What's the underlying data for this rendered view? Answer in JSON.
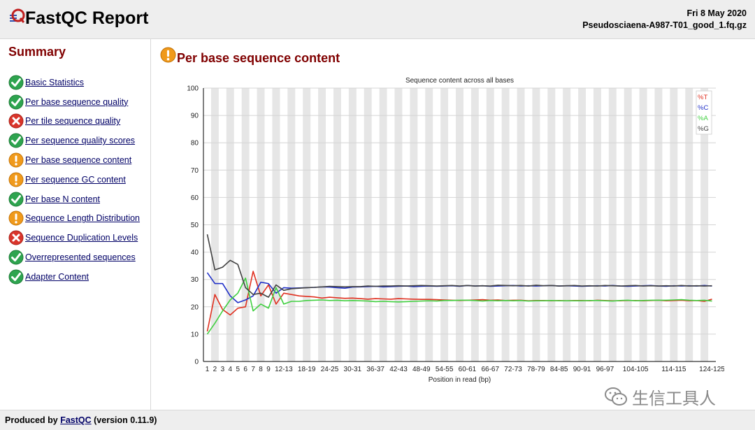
{
  "header": {
    "app_title": "FastQC Report",
    "date": "Fri 8 May 2020",
    "filename": "Pseudosciaena-A987-T01_good_1.fq.gz"
  },
  "sidebar": {
    "title": "Summary",
    "items": [
      {
        "label": "Basic Statistics",
        "status": "pass",
        "icon": "pass-icon"
      },
      {
        "label": "Per base sequence quality",
        "status": "pass",
        "icon": "pass-icon"
      },
      {
        "label": "Per tile sequence quality",
        "status": "fail",
        "icon": "fail-icon"
      },
      {
        "label": "Per sequence quality scores",
        "status": "pass",
        "icon": "pass-icon"
      },
      {
        "label": "Per base sequence content",
        "status": "warn",
        "icon": "warn-icon"
      },
      {
        "label": "Per sequence GC content",
        "status": "warn",
        "icon": "warn-icon"
      },
      {
        "label": "Per base N content",
        "status": "pass",
        "icon": "pass-icon"
      },
      {
        "label": "Sequence Length Distribution",
        "status": "warn",
        "icon": "warn-icon"
      },
      {
        "label": "Sequence Duplication Levels",
        "status": "fail",
        "icon": "fail-icon"
      },
      {
        "label": "Overrepresented sequences",
        "status": "pass",
        "icon": "pass-icon"
      },
      {
        "label": "Adapter Content",
        "status": "pass",
        "icon": "pass-icon"
      }
    ]
  },
  "section": {
    "title": "Per base sequence content",
    "status": "warn",
    "icon": "warn-icon"
  },
  "colors": {
    "pass": "#2ea44f",
    "fail": "#d9352b",
    "warn": "#f09a1c",
    "title": "#800000",
    "link": "#000066"
  },
  "chart_data": {
    "type": "line",
    "title": "Sequence content across all bases",
    "xlabel": "Position in read (bp)",
    "ylabel": "",
    "ylim": [
      0,
      100
    ],
    "yticks": [
      0,
      10,
      20,
      30,
      40,
      50,
      60,
      70,
      80,
      90,
      100
    ],
    "grid": true,
    "legend_position": "top-right",
    "categories": [
      "1",
      "2",
      "3",
      "4",
      "5",
      "6",
      "7",
      "8",
      "9",
      "10-11",
      "12-13",
      "14-15",
      "16-17",
      "18-19",
      "20-21",
      "22-23",
      "24-25",
      "26-27",
      "28-29",
      "30-31",
      "32-33",
      "34-35",
      "36-37",
      "38-39",
      "40-41",
      "42-43",
      "44-45",
      "46-47",
      "48-49",
      "50-51",
      "52-53",
      "54-55",
      "56-57",
      "58-59",
      "60-61",
      "62-63",
      "64-65",
      "66-67",
      "68-69",
      "70-71",
      "72-73",
      "74-75",
      "76-77",
      "78-79",
      "80-81",
      "82-83",
      "84-85",
      "86-87",
      "88-89",
      "90-91",
      "92-93",
      "94-95",
      "96-97",
      "98-99",
      "100-101",
      "102-103",
      "104-105",
      "106-107",
      "108-109",
      "110-111",
      "112-113",
      "114-115",
      "116-117",
      "118-119",
      "120-121",
      "122-123",
      "124-125"
    ],
    "tick_labels": [
      "1",
      "2",
      "3",
      "4",
      "5",
      "6",
      "7",
      "8",
      "9",
      "12-13",
      "18-19",
      "24-25",
      "30-31",
      "36-37",
      "42-43",
      "48-49",
      "54-55",
      "60-61",
      "66-67",
      "72-73",
      "78-79",
      "84-85",
      "90-91",
      "96-97",
      "104-105",
      "114-115",
      "124-125"
    ],
    "series": [
      {
        "name": "%T",
        "color": "#e03020",
        "values": [
          11,
          24.5,
          19,
          17,
          19.5,
          20,
          33,
          24,
          28,
          21,
          25,
          24.5,
          24,
          23.8,
          23.6,
          23.2,
          23.5,
          23.3,
          23.1,
          23.2,
          23,
          22.8,
          23,
          22.9,
          22.8,
          23,
          22.9,
          22.8,
          22.7,
          22.7,
          22.6,
          22.5,
          22.4,
          22.3,
          22.4,
          22.5,
          22.6,
          22.4,
          22.5,
          22.3,
          22.4,
          22.4,
          22.2,
          22.3,
          22.3,
          22.2,
          22.3,
          22.2,
          22.3,
          22.3,
          22.2,
          22.4,
          22.3,
          22.2,
          22.2,
          22.3,
          22.3,
          22.2,
          22.3,
          22.4,
          22.2,
          22.3,
          22.4,
          22.2,
          22.3,
          22,
          22.8
        ]
      },
      {
        "name": "%C",
        "color": "#2030c8",
        "values": [
          32.5,
          28.5,
          28.5,
          24,
          21.5,
          22.5,
          24,
          29,
          28.5,
          25,
          27,
          26.8,
          26.9,
          27,
          27.1,
          27.3,
          27.2,
          27,
          26.8,
          27.2,
          27.3,
          27.4,
          27.5,
          27.3,
          27.4,
          27.5,
          27.6,
          27.4,
          27.5,
          27.6,
          27.5,
          27.6,
          27.7,
          27.5,
          27.8,
          27.6,
          27.7,
          27.5,
          27.6,
          27.7,
          27.8,
          27.6,
          27.7,
          27.6,
          27.7,
          27.8,
          27.6,
          27.7,
          27.6,
          27.5,
          27.6,
          27.7,
          27.6,
          27.8,
          27.6,
          27.5,
          27.6,
          27.7,
          27.8,
          27.6,
          27.5,
          27.7,
          27.6,
          27.7,
          27.6,
          27.8,
          27.6
        ]
      },
      {
        "name": "%A",
        "color": "#40d040",
        "values": [
          10,
          14,
          18.5,
          22.5,
          25,
          30.5,
          18.5,
          21,
          19.5,
          27,
          21,
          22,
          22,
          22.3,
          22.4,
          22.5,
          22.3,
          22.4,
          22.2,
          22.3,
          22.2,
          22.1,
          21.9,
          22,
          21.9,
          21.8,
          21.9,
          22,
          22.1,
          22.2,
          22.1,
          22.3,
          22.3,
          22.4,
          22.4,
          22.3,
          22.1,
          22.3,
          22.2,
          22.3,
          22.2,
          22.3,
          22.1,
          22.2,
          22.2,
          22.3,
          22.2,
          22.2,
          22.2,
          22.2,
          22.3,
          22.3,
          22.2,
          22.1,
          22.3,
          22.4,
          22.2,
          22.3,
          22.4,
          22.4,
          22.4,
          22.5,
          22.6,
          22.4,
          22.3,
          22.4,
          22.1
        ]
      },
      {
        "name": "%G",
        "color": "#404040",
        "values": [
          46.5,
          33.5,
          34.5,
          37,
          35.5,
          27,
          24.5,
          25,
          23.5,
          28,
          26,
          26.6,
          26.8,
          27,
          27.1,
          27.3,
          27.5,
          27.4,
          27.3,
          27.4,
          27.4,
          27.6,
          27.5,
          27.6,
          27.6,
          27.7,
          27.6,
          27.7,
          27.8,
          27.7,
          27.6,
          27.7,
          27.8,
          27.6,
          27.8,
          27.6,
          27.7,
          27.6,
          27.9,
          27.8,
          27.7,
          27.8,
          27.6,
          27.9,
          27.7,
          27.8,
          27.6,
          27.7,
          27.8,
          27.6,
          27.7,
          27.6,
          27.8,
          27.7,
          27.6,
          27.7,
          27.8,
          27.6,
          27.7,
          27.6,
          27.7,
          27.6,
          27.8,
          27.6,
          27.7,
          27.6,
          27.7
        ]
      }
    ]
  },
  "footer": {
    "prefix": "Produced by",
    "link": "FastQC",
    "suffix": "(version 0.11.9)"
  },
  "watermark": {
    "text": "生信工具人",
    "icon": "wechat-icon"
  }
}
